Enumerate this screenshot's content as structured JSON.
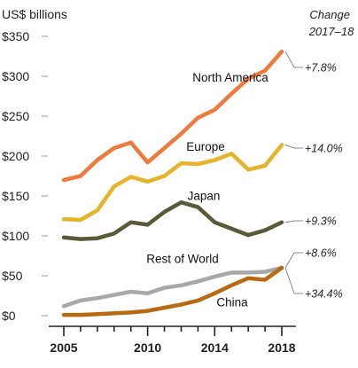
{
  "chart_data": {
    "type": "line",
    "ylabel": "US$ billions",
    "change_header": [
      "Change",
      "2017–18"
    ],
    "ylim": [
      0,
      350
    ],
    "yticks": [
      0,
      50,
      100,
      150,
      200,
      250,
      300,
      350
    ],
    "ytick_labels": [
      "$0",
      "$50",
      "$100",
      "$150",
      "$200",
      "$250",
      "$300",
      "$350"
    ],
    "xlim": [
      2005,
      2018
    ],
    "xticks": [
      2005,
      2010,
      2014,
      2018
    ],
    "xtick_labels": [
      "2005",
      "2010",
      "2014",
      "2018"
    ],
    "grid": false,
    "x": [
      2005,
      2006,
      2007,
      2008,
      2009,
      2010,
      2011,
      2012,
      2013,
      2014,
      2015,
      2016,
      2017,
      2018
    ],
    "series": [
      {
        "name": "North America",
        "color": "#ee7a3c",
        "change": "+7.8%",
        "values": [
          170,
          175,
          195,
          210,
          217,
          192,
          210,
          228,
          248,
          258,
          278,
          297,
          307,
          331
        ]
      },
      {
        "name": "Europe",
        "color": "#e5b42a",
        "change": "+14.0%",
        "values": [
          121,
          120,
          132,
          162,
          174,
          168,
          175,
          191,
          190,
          195,
          203,
          183,
          188,
          214
        ]
      },
      {
        "name": "Japan",
        "color": "#5a5a38",
        "change": "+9.3%",
        "values": [
          98,
          96,
          97,
          103,
          117,
          114,
          130,
          142,
          136,
          117,
          109,
          101,
          107,
          117
        ]
      },
      {
        "name": "Rest of World",
        "color": "#a8a8a8",
        "change": "+8.6%",
        "values": [
          12,
          19,
          22,
          26,
          30,
          28,
          35,
          38,
          43,
          49,
          54,
          54,
          55,
          60
        ]
      },
      {
        "name": "China",
        "color": "#b86a12",
        "change": "+34.4%",
        "values": [
          1,
          1,
          2,
          3,
          4,
          6,
          10,
          14,
          19,
          28,
          38,
          47,
          45,
          60
        ]
      }
    ]
  }
}
